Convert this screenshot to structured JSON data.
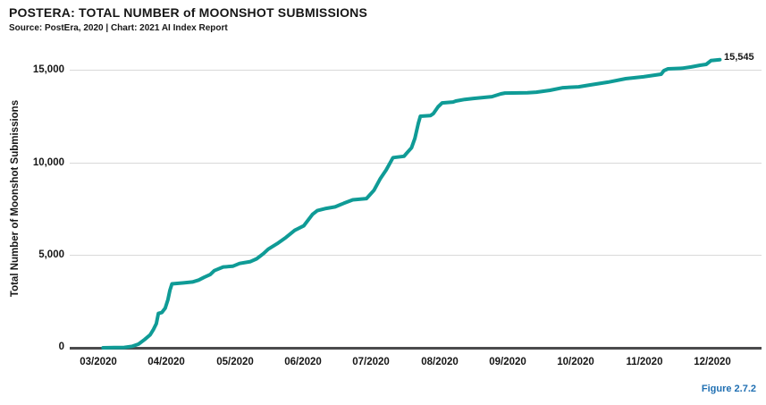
{
  "header": {
    "title": "POSTERA: TOTAL NUMBER of MOONSHOT SUBMISSIONS",
    "source_line": "Source: PostEra, 2020 | Chart: 2021 AI Index Report"
  },
  "figure_caption": "Figure 2.7.2",
  "chart_data": {
    "type": "line",
    "title": "POSTERA: TOTAL NUMBER of MOONSHOT SUBMISSIONS",
    "xlabel": "",
    "ylabel": "Total Number of Moonshot Submissions",
    "categories": [
      "03/2020",
      "04/2020",
      "05/2020",
      "06/2020",
      "07/2020",
      "08/2020",
      "09/2020",
      "10/2020",
      "11/2020",
      "12/2020"
    ],
    "ytick_labels": [
      "0",
      "5,000",
      "10,000",
      "15,000"
    ],
    "yticks": [
      0,
      5000,
      10000,
      15000
    ],
    "ylim": [
      0,
      16000
    ],
    "grid": "horizontal-only",
    "legend": "none",
    "line_color": "#0F9B96",
    "end_label": "15,545",
    "final_value": 15545,
    "points_note": "x = months after 03/2020 tick (0 = 03/2020, 9 = 12/2020); y = cumulative submissions",
    "points": [
      [
        0.07,
        0
      ],
      [
        0.38,
        20
      ],
      [
        0.5,
        80
      ],
      [
        0.59,
        200
      ],
      [
        0.68,
        450
      ],
      [
        0.76,
        700
      ],
      [
        0.81,
        1000
      ],
      [
        0.85,
        1300
      ],
      [
        0.88,
        1850
      ],
      [
        0.93,
        1900
      ],
      [
        0.98,
        2130
      ],
      [
        1.02,
        2600
      ],
      [
        1.05,
        3100
      ],
      [
        1.08,
        3450
      ],
      [
        1.25,
        3500
      ],
      [
        1.38,
        3550
      ],
      [
        1.47,
        3650
      ],
      [
        1.55,
        3800
      ],
      [
        1.64,
        3950
      ],
      [
        1.7,
        4160
      ],
      [
        1.83,
        4360
      ],
      [
        1.97,
        4400
      ],
      [
        2.07,
        4550
      ],
      [
        2.23,
        4650
      ],
      [
        2.32,
        4800
      ],
      [
        2.42,
        5080
      ],
      [
        2.49,
        5320
      ],
      [
        2.62,
        5615
      ],
      [
        2.75,
        5950
      ],
      [
        2.88,
        6340
      ],
      [
        3.01,
        6580
      ],
      [
        3.14,
        7200
      ],
      [
        3.21,
        7400
      ],
      [
        3.34,
        7520
      ],
      [
        3.47,
        7600
      ],
      [
        3.6,
        7800
      ],
      [
        3.73,
        7980
      ],
      [
        3.93,
        8050
      ],
      [
        4.04,
        8500
      ],
      [
        4.13,
        9100
      ],
      [
        4.22,
        9600
      ],
      [
        4.28,
        10000
      ],
      [
        4.32,
        10260
      ],
      [
        4.48,
        10330
      ],
      [
        4.52,
        10500
      ],
      [
        4.59,
        10790
      ],
      [
        4.64,
        11300
      ],
      [
        4.69,
        12100
      ],
      [
        4.72,
        12490
      ],
      [
        4.87,
        12530
      ],
      [
        4.91,
        12630
      ],
      [
        4.98,
        13000
      ],
      [
        5.04,
        13210
      ],
      [
        5.2,
        13260
      ],
      [
        5.24,
        13310
      ],
      [
        5.37,
        13400
      ],
      [
        5.5,
        13450
      ],
      [
        5.77,
        13550
      ],
      [
        5.9,
        13700
      ],
      [
        5.96,
        13740
      ],
      [
        6.29,
        13760
      ],
      [
        6.42,
        13790
      ],
      [
        6.62,
        13890
      ],
      [
        6.81,
        14030
      ],
      [
        7.04,
        14080
      ],
      [
        7.21,
        14180
      ],
      [
        7.47,
        14330
      ],
      [
        7.73,
        14520
      ],
      [
        7.99,
        14620
      ],
      [
        8.25,
        14760
      ],
      [
        8.29,
        14950
      ],
      [
        8.35,
        15050
      ],
      [
        8.56,
        15080
      ],
      [
        8.69,
        15150
      ],
      [
        8.82,
        15240
      ],
      [
        8.91,
        15290
      ],
      [
        8.98,
        15490
      ],
      [
        9.11,
        15545
      ]
    ]
  }
}
